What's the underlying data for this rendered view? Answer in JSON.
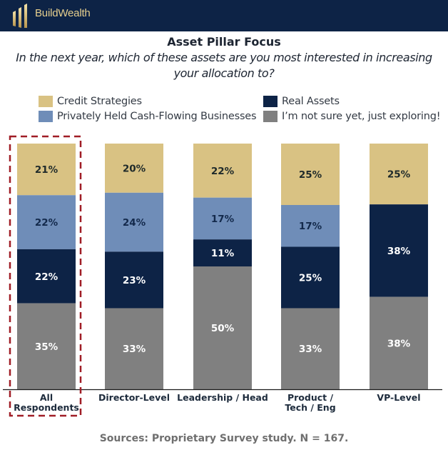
{
  "header": {
    "brand": "BuildWealth",
    "logo_icon": "pillars-icon",
    "background": "#0d2346",
    "accent": "#e6cf8e"
  },
  "chart_data": {
    "type": "bar",
    "stacked": true,
    "title": "Asset Pillar Focus",
    "subtitle": "In the next year, which of these assets are you most interested in increasing your allocation to?",
    "xlabel": "",
    "ylabel": "",
    "ylim": [
      0,
      100
    ],
    "grid": false,
    "legend_position": "top",
    "categories": [
      "All Respondents",
      "Director-Level",
      "Leadership / Head",
      "Product / Tech / Eng",
      "VP-Level"
    ],
    "category_lines": [
      [
        "All",
        "Respondents"
      ],
      [
        "Director-Level"
      ],
      [
        "Leadership / Head"
      ],
      [
        "Product /",
        "Tech / Eng"
      ],
      [
        "VP-Level"
      ]
    ],
    "highlighted_category": "All Respondents",
    "series": [
      {
        "name": "Credit Strategies",
        "color": "#d9c283",
        "label_color": "#1f2a2a",
        "values": [
          21,
          20,
          22,
          25,
          25
        ]
      },
      {
        "name": "Privately Held Cash-Flowing Businesses",
        "color": "#6f8db8",
        "label_color": "#13294b",
        "values": [
          22,
          24,
          17,
          17,
          0
        ]
      },
      {
        "name": "Real Assets",
        "color": "#0d2346",
        "label_color": "#ffffff",
        "values": [
          22,
          23,
          11,
          25,
          38
        ]
      },
      {
        "name": "I'm not sure yet, just exploring!",
        "color": "#808080",
        "label_color": "#ffffff",
        "values": [
          35,
          33,
          50,
          33,
          38
        ]
      }
    ],
    "value_suffix": "%"
  },
  "legend": {
    "items": [
      {
        "label": "Credit Strategies",
        "color": "#d9c283"
      },
      {
        "label": "Real Assets",
        "color": "#0d2346"
      },
      {
        "label": "Privately Held Cash-Flowing Businesses",
        "color": "#6f8db8"
      },
      {
        "label": "I’m not sure yet, just exploring!",
        "color": "#808080"
      }
    ]
  },
  "footer": {
    "source": "Sources: Proprietary Survey study. N = 167."
  },
  "highlight_color": "#a01d26"
}
